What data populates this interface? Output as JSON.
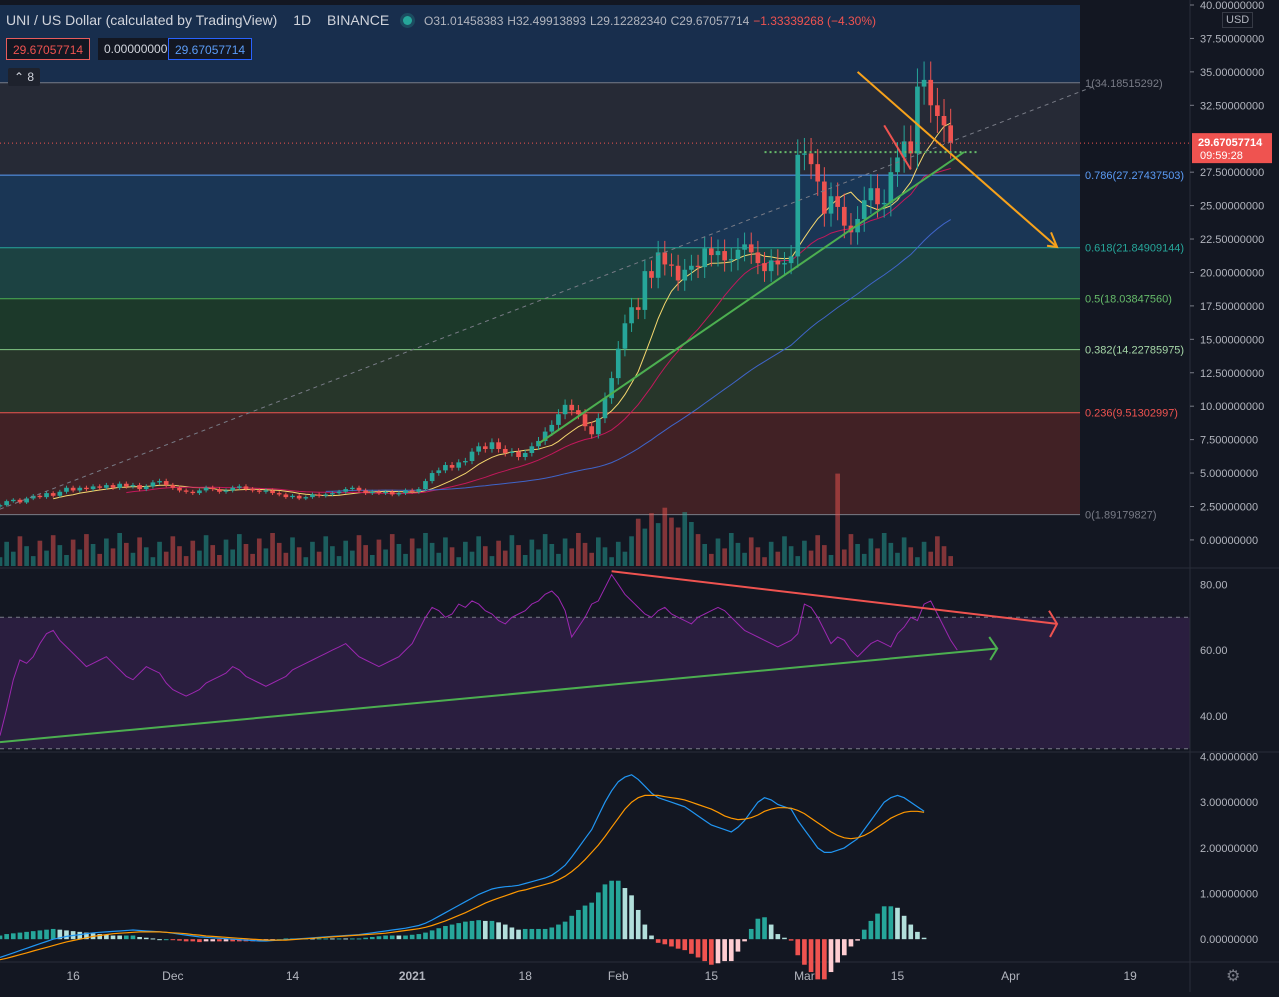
{
  "header": {
    "symbol": "UNI / US Dollar (calculated by TradingView)",
    "interval": "1D",
    "exchange": "BINANCE",
    "open": "O31.01458383",
    "high": "H32.49913893",
    "low": "L29.12282340",
    "close": "C29.67057714",
    "change": "−1.33339268 (−4.30%)"
  },
  "price_boxes": {
    "sell": "29.67057714",
    "spread": "0.00000000",
    "buy": "29.67057714"
  },
  "collapse_count": "8",
  "currency": "USD",
  "last_price": {
    "value": "29.67057714",
    "countdown": "09:59:28"
  },
  "colors": {
    "up": "#26a69a",
    "down": "#ef5350",
    "fib_1": "#2a2e39",
    "fib_0786": "#1c3c5e",
    "fib_0618": "#1f4a48",
    "fib_05": "#1e3f2c",
    "fib_0382": "#2b3c2c",
    "fib_0236": "#4a2326",
    "rsi_band": "#2a1e3f",
    "rsi_line": "#9c27b0",
    "macd_line": "#2196f3",
    "signal_line": "#ff9800",
    "trend_orange": "#f7a21b",
    "trend_green": "#4caf50",
    "trend_red": "#ef5350"
  },
  "chart_data": [
    {
      "type": "candlestick",
      "title": "UNI / US Dollar (calculated by TradingView) 1D BINANCE",
      "y_ticks": [
        "40.00000000",
        "37.50000000",
        "35.00000000",
        "32.50000000",
        "27.50000000",
        "25.00000000",
        "22.50000000",
        "20.00000000",
        "17.50000000",
        "15.00000000",
        "12.50000000",
        "10.00000000",
        "7.50000000",
        "5.00000000",
        "2.50000000",
        "0.00000000"
      ],
      "y_tick_values": [
        40,
        37.5,
        35,
        32.5,
        27.5,
        25,
        22.5,
        20,
        17.5,
        15,
        12.5,
        10,
        7.5,
        5,
        2.5,
        0
      ],
      "ylim": [
        -2.1,
        40
      ],
      "x_ticks": [
        "16",
        "Dec",
        "14",
        "2021",
        "18",
        "Feb",
        "15",
        "Mar",
        "15",
        "Apr",
        "19"
      ],
      "x_tick_days": [
        -51,
        -36,
        -18,
        0,
        17,
        31,
        45,
        59,
        73,
        90,
        108
      ],
      "x_range_days": [
        -62,
        117
      ],
      "fib_levels": [
        {
          "label": "1(34.18515292)",
          "value": 34.18515292
        },
        {
          "label": "0.786(27.27437503)",
          "value": 27.27437503
        },
        {
          "label": "0.618(21.84909144)",
          "value": 21.84909144
        },
        {
          "label": "0.5(18.03847560)",
          "value": 18.0384756
        },
        {
          "label": "0.382(14.22785975)",
          "value": 14.22785975
        },
        {
          "label": "0.236(9.51302997)",
          "value": 9.51302997
        },
        {
          "label": "0(1.89179827)",
          "value": 1.89179827
        }
      ],
      "candles_close": [
        2.6,
        2.9,
        3.0,
        2.8,
        3.1,
        3.3,
        3.2,
        3.5,
        3.3,
        3.6,
        3.9,
        3.7,
        3.9,
        3.8,
        4.0,
        3.9,
        4.1,
        3.9,
        4.2,
        4.0,
        4.1,
        3.8,
        4.0,
        4.3,
        4.4,
        4.1,
        3.9,
        3.7,
        3.6,
        3.5,
        3.7,
        3.9,
        3.8,
        3.6,
        3.7,
        3.9,
        4.0,
        3.8,
        3.7,
        3.6,
        3.7,
        3.5,
        3.4,
        3.2,
        3.3,
        3.1,
        3.2,
        3.4,
        3.3,
        3.4,
        3.5,
        3.6,
        3.8,
        3.9,
        3.7,
        3.5,
        3.6,
        3.5,
        3.6,
        3.4,
        3.5,
        3.7,
        3.6,
        3.8,
        4.4,
        5.0,
        5.2,
        5.6,
        5.4,
        5.8,
        5.9,
        6.6,
        7.0,
        6.8,
        7.3,
        6.8,
        6.5,
        6.6,
        6.2,
        6.5,
        7.0,
        7.4,
        8.1,
        8.6,
        9.4,
        10.1,
        9.7,
        9.4,
        8.5,
        7.9,
        9.1,
        10.6,
        12.1,
        14.3,
        16.2,
        17.4,
        17.2,
        20.1,
        19.6,
        21.5,
        20.6,
        20.5,
        19.4,
        20.2,
        20.5,
        20.4,
        21.8,
        21.3,
        21.6,
        20.9,
        21.0,
        21.7,
        22.1,
        21.5,
        20.7,
        20.1,
        20.9,
        20.6,
        20.7,
        21.2,
        28.8,
        28.9,
        28.1,
        26.8,
        24.4,
        25.7,
        24.9,
        23.5,
        23.0,
        24.0,
        25.4,
        26.3,
        25.1,
        25.2,
        27.5,
        28.6,
        29.8,
        28.9,
        33.9,
        34.4,
        32.5,
        31.7,
        31.0,
        29.7
      ],
      "candles_open": [
        2.5,
        2.6,
        2.9,
        3.0,
        2.8,
        3.1,
        3.3,
        3.2,
        3.5,
        3.3,
        3.6,
        3.9,
        3.7,
        3.9,
        3.8,
        4.0,
        3.9,
        4.1,
        3.9,
        4.2,
        4.0,
        4.1,
        3.8,
        4.0,
        4.3,
        4.4,
        4.1,
        3.9,
        3.7,
        3.6,
        3.5,
        3.7,
        3.9,
        3.8,
        3.6,
        3.7,
        3.9,
        4.0,
        3.8,
        3.7,
        3.6,
        3.7,
        3.5,
        3.4,
        3.2,
        3.3,
        3.1,
        3.2,
        3.4,
        3.3,
        3.4,
        3.5,
        3.6,
        3.8,
        3.9,
        3.7,
        3.5,
        3.6,
        3.5,
        3.6,
        3.4,
        3.5,
        3.7,
        3.6,
        3.8,
        4.4,
        5.0,
        5.2,
        5.6,
        5.4,
        5.8,
        5.9,
        6.6,
        7.0,
        6.8,
        7.3,
        6.8,
        6.5,
        6.6,
        6.2,
        6.5,
        7.0,
        7.4,
        8.1,
        8.6,
        9.4,
        10.1,
        9.7,
        9.4,
        8.5,
        7.9,
        9.1,
        10.6,
        12.1,
        14.3,
        16.2,
        17.4,
        17.2,
        20.1,
        19.6,
        21.5,
        20.6,
        20.5,
        19.4,
        20.2,
        20.5,
        20.4,
        21.8,
        21.3,
        21.6,
        20.9,
        21.0,
        21.7,
        22.1,
        21.5,
        20.7,
        20.1,
        20.9,
        20.6,
        20.7,
        21.2,
        28.8,
        28.9,
        28.1,
        26.8,
        24.4,
        25.7,
        24.9,
        23.5,
        23.0,
        24.0,
        25.4,
        26.3,
        25.1,
        25.2,
        27.5,
        28.6,
        29.8,
        28.9,
        33.9,
        34.4,
        32.5,
        31.7,
        31.0
      ],
      "start_day": -62
    },
    {
      "type": "line",
      "title": "RSI",
      "y_ticks": [
        "80.00",
        "60.00",
        "40.00"
      ],
      "y_tick_values": [
        80,
        60,
        40
      ],
      "ylim": [
        29,
        85
      ],
      "bands": [
        70,
        30
      ],
      "series": [
        {
          "values": [
            34,
            42,
            51,
            57,
            56,
            58,
            62,
            65,
            66,
            63,
            61,
            59,
            57,
            55,
            56,
            57,
            58,
            56,
            54,
            52,
            51,
            53,
            55,
            54,
            53,
            50,
            48,
            47,
            46,
            47,
            48,
            50,
            51,
            52,
            53,
            55,
            54,
            52,
            51,
            50,
            49,
            50,
            51,
            52,
            54,
            55,
            56,
            57,
            58,
            59,
            60,
            61,
            62,
            60,
            58,
            57,
            56,
            55,
            56,
            57,
            58,
            60,
            62,
            66,
            70,
            73,
            72,
            70,
            71,
            74,
            73,
            75,
            74,
            72,
            71,
            69,
            68,
            70,
            71,
            72,
            74,
            75,
            77,
            78,
            76,
            72,
            64,
            67,
            70,
            74,
            75,
            79,
            83,
            80,
            77,
            75,
            73,
            71,
            70,
            72,
            73,
            71,
            70,
            69,
            68,
            70,
            71,
            72,
            73,
            72,
            70,
            68,
            66,
            65,
            64,
            63,
            62,
            61,
            62,
            63,
            65,
            74,
            73,
            70,
            66,
            62,
            64,
            63,
            60,
            58,
            60,
            62,
            63,
            62,
            61,
            65,
            67,
            70,
            69,
            74,
            75,
            71,
            67,
            63,
            60
          ]
        }
      ]
    },
    {
      "type": "line",
      "title": "MACD",
      "y_ticks": [
        "4.00000000",
        "3.00000000",
        "2.00000000",
        "1.00000000",
        "0.00000000"
      ],
      "y_tick_values": [
        4,
        3,
        2,
        1,
        0
      ],
      "ylim": [
        -0.5,
        4.1
      ],
      "series": [
        {
          "name": "MACD",
          "values": [
            -0.4,
            -0.35,
            -0.3,
            -0.25,
            -0.2,
            -0.15,
            -0.1,
            -0.05,
            0.0,
            0.03,
            0.06,
            0.08,
            0.1,
            0.12,
            0.14,
            0.15,
            0.16,
            0.17,
            0.18,
            0.19,
            0.2,
            0.19,
            0.18,
            0.17,
            0.16,
            0.15,
            0.13,
            0.11,
            0.09,
            0.07,
            0.05,
            0.04,
            0.03,
            0.02,
            0.01,
            0.0,
            -0.01,
            -0.02,
            -0.03,
            -0.04,
            -0.04,
            -0.03,
            -0.02,
            -0.01,
            0.0,
            0.01,
            0.02,
            0.03,
            0.04,
            0.05,
            0.06,
            0.07,
            0.08,
            0.09,
            0.1,
            0.12,
            0.14,
            0.16,
            0.18,
            0.2,
            0.22,
            0.24,
            0.27,
            0.3,
            0.35,
            0.42,
            0.5,
            0.58,
            0.66,
            0.74,
            0.82,
            0.9,
            0.98,
            1.04,
            1.1,
            1.13,
            1.15,
            1.16,
            1.18,
            1.22,
            1.26,
            1.3,
            1.34,
            1.4,
            1.5,
            1.62,
            1.8,
            2.0,
            2.2,
            2.4,
            2.7,
            3.0,
            3.25,
            3.45,
            3.55,
            3.6,
            3.5,
            3.35,
            3.2,
            3.1,
            3.05,
            3.0,
            2.95,
            2.9,
            2.8,
            2.7,
            2.6,
            2.5,
            2.45,
            2.4,
            2.35,
            2.45,
            2.6,
            2.8,
            3.0,
            3.1,
            3.05,
            2.95,
            2.9,
            2.85,
            2.6,
            2.4,
            2.2,
            2.0,
            1.9,
            1.9,
            1.95,
            2.0,
            2.1,
            2.2,
            2.4,
            2.6,
            2.8,
            3.0,
            3.1,
            3.15,
            3.1,
            3.0,
            2.9,
            2.8
          ]
        },
        {
          "name": "Signal",
          "values": [
            -0.45,
            -0.42,
            -0.38,
            -0.34,
            -0.3,
            -0.26,
            -0.22,
            -0.18,
            -0.14,
            -0.1,
            -0.06,
            -0.03,
            0.0,
            0.03,
            0.06,
            0.08,
            0.1,
            0.12,
            0.13,
            0.14,
            0.15,
            0.16,
            0.16,
            0.16,
            0.16,
            0.15,
            0.14,
            0.13,
            0.12,
            0.1,
            0.09,
            0.07,
            0.06,
            0.05,
            0.04,
            0.03,
            0.02,
            0.01,
            0.0,
            -0.01,
            -0.02,
            -0.02,
            -0.02,
            -0.02,
            -0.01,
            0.0,
            0.01,
            0.02,
            0.03,
            0.04,
            0.05,
            0.06,
            0.07,
            0.08,
            0.09,
            0.1,
            0.11,
            0.12,
            0.13,
            0.15,
            0.17,
            0.19,
            0.21,
            0.23,
            0.26,
            0.3,
            0.35,
            0.4,
            0.46,
            0.52,
            0.58,
            0.65,
            0.72,
            0.79,
            0.85,
            0.9,
            0.95,
            1.0,
            1.05,
            1.08,
            1.12,
            1.16,
            1.2,
            1.24,
            1.3,
            1.38,
            1.48,
            1.6,
            1.74,
            1.9,
            2.06,
            2.25,
            2.45,
            2.65,
            2.85,
            3.0,
            3.1,
            3.15,
            3.15,
            3.15,
            3.12,
            3.1,
            3.08,
            3.05,
            3.0,
            2.95,
            2.9,
            2.85,
            2.78,
            2.7,
            2.65,
            2.62,
            2.63,
            2.66,
            2.72,
            2.8,
            2.85,
            2.88,
            2.88,
            2.87,
            2.82,
            2.75,
            2.65,
            2.55,
            2.45,
            2.35,
            2.27,
            2.22,
            2.2,
            2.22,
            2.27,
            2.35,
            2.45,
            2.55,
            2.65,
            2.72,
            2.78,
            2.8,
            2.8,
            2.78
          ]
        }
      ]
    }
  ],
  "labels": {
    "settings_icon": "gear-icon"
  }
}
